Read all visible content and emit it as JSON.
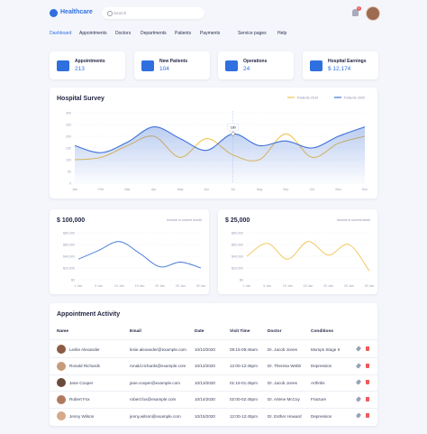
{
  "header": {
    "brand": "Healthcare",
    "search_placeholder": "Search",
    "notification_count": "1"
  },
  "nav": [
    "Dashboard",
    "Appointments",
    "Doctors",
    "Departments",
    "Patients",
    "Payments",
    "Service pages",
    "Help"
  ],
  "stats": [
    {
      "label": "Appointments",
      "value": "213"
    },
    {
      "label": "New Patients",
      "value": "104"
    },
    {
      "label": "Operations",
      "value": "24"
    },
    {
      "label": "Hospital Earnings",
      "value": "$ 12,174"
    }
  ],
  "chart_data": [
    {
      "type": "line",
      "title": "Hospital Survey",
      "tooltip": "180",
      "categories": [
        "Jan",
        "Feb",
        "Mar",
        "Apr",
        "May",
        "Jun",
        "Jul",
        "Aug",
        "Sep",
        "Oct",
        "Nov",
        "Dec"
      ],
      "series": [
        {
          "name": "Patients 2019",
          "color": "#f3c44f",
          "values": [
            100,
            110,
            160,
            200,
            110,
            190,
            120,
            100,
            210,
            110,
            170,
            200
          ]
        },
        {
          "name": "Patients 2020",
          "color": "#3f72d8",
          "area": true,
          "values": [
            160,
            130,
            175,
            240,
            190,
            140,
            210,
            160,
            180,
            150,
            200,
            240
          ]
        }
      ],
      "ylim": [
        0,
        300
      ],
      "yticks": [
        0,
        50,
        100,
        150,
        200,
        250,
        300
      ],
      "grid": true,
      "legend": "top-right"
    },
    {
      "type": "line",
      "title": "$ 100,000",
      "subtitle": "Income in current month",
      "categories": [
        "1 Jan",
        "5 Jan",
        "10 Jan",
        "15 Jan",
        "20 Jan",
        "25 Jan",
        "30 Jan"
      ],
      "series": [
        {
          "name": null,
          "color": "#3f72d8",
          "values": [
            35000,
            50000,
            65000,
            45000,
            22000,
            30000,
            20000
          ]
        }
      ],
      "ylim": [
        0,
        80000
      ],
      "yticks": [
        {
          "value": 0,
          "label": "$0"
        },
        {
          "value": 20000,
          "label": "$20,000"
        },
        {
          "value": 40000,
          "label": "$40,000"
        },
        {
          "value": 60000,
          "label": "$60,000"
        },
        {
          "value": 80000,
          "label": "$80,000"
        }
      ],
      "grid": true
    },
    {
      "type": "line",
      "title": "$ 25,000",
      "subtitle": "Income in current week",
      "categories": [
        "1 Jan",
        "5 Jan",
        "10 Jan",
        "15 Jan",
        "20 Jan",
        "25 Jan",
        "30 Jan"
      ],
      "series": [
        {
          "name": null,
          "color": "#f3c44f",
          "values": [
            40000,
            62000,
            35000,
            65000,
            42000,
            60000,
            15000
          ]
        }
      ],
      "ylim": [
        0,
        80000
      ],
      "yticks": [
        {
          "value": 0,
          "label": "$0"
        },
        {
          "value": 20000,
          "label": "$20,000"
        },
        {
          "value": 40000,
          "label": "$40,000"
        },
        {
          "value": 60000,
          "label": "$60,000"
        },
        {
          "value": 80000,
          "label": "$80,000"
        }
      ],
      "grid": true
    }
  ],
  "table": {
    "title": "Appointment Activity",
    "columns": [
      "Name",
      "Email",
      "Date",
      "Visit Time",
      "Doctor",
      "Conditions"
    ],
    "rows": [
      [
        "Leslie Alexander",
        "lesie.alexander@example.com",
        "10/10/2020",
        "09:15-09:45am",
        "Dr. Jacob Jones",
        "Mumps Stage II"
      ],
      [
        "Ronald Richards",
        "ronald.richards@example.com",
        "10/12/2020",
        "12:00-12:45pm",
        "Dr. Theresa Webb",
        "Depression"
      ],
      [
        "Jane Cooper",
        "jane.cooper@example.com",
        "10/13/2020",
        "01:15-01:45pm",
        "Dr. Jacob Jones",
        "Arthritis"
      ],
      [
        "Robert Fox",
        "robert.fox@example.com",
        "10/14/2020",
        "02:00-02:45pm",
        "Dr. Arlene McCoy",
        "Fracture"
      ],
      [
        "Jenny Wilson",
        "jenny.wilson@example.com",
        "10/15/2020",
        "12:00-12:45pm",
        "Dr. Esther Howard",
        "Depression"
      ]
    ]
  }
}
